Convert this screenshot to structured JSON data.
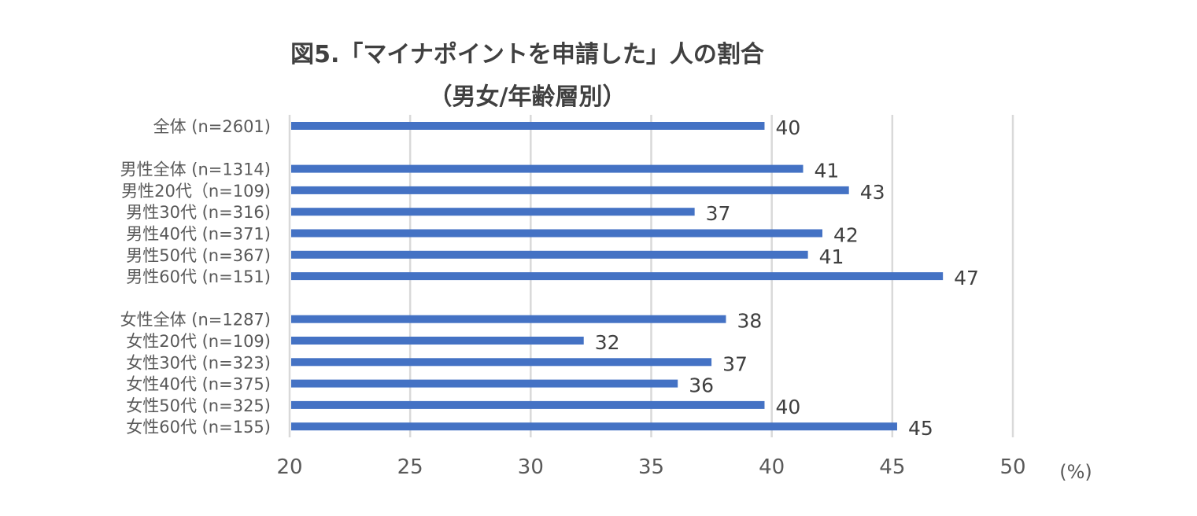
{
  "title_lines": [
    "図5.「マイナポイントを申請した」人の割合",
    "（男女/年齢層別）"
  ],
  "chart_data": {
    "type": "bar",
    "orientation": "horizontal",
    "title": "図5.「マイナポイントを申請した」人の割合（男女/年齢層別）",
    "xlabel": "(%)",
    "ylabel": "",
    "xlim": [
      20,
      50
    ],
    "x_ticks": [
      "20",
      "25",
      "30",
      "35",
      "40",
      "45",
      "50"
    ],
    "grid": "vertical",
    "categories": [
      "全体 (n=2601)",
      "男性全体 (n=1314)",
      "男性20代（n=109)",
      "男性30代 (n=316)",
      "男性40代 (n=371)",
      "男性50代 (n=367)",
      "男性60代 (n=151)",
      "女性全体 (n=1287)",
      "女性20代 (n=109)",
      "女性30代 (n=323)",
      "女性40代 (n=375)",
      "女性50代 (n=325)",
      "女性60代 (n=155)"
    ],
    "groups": [
      0,
      1,
      1,
      1,
      1,
      1,
      1,
      2,
      2,
      2,
      2,
      2,
      2
    ],
    "values": [
      39.7,
      41.3,
      43.2,
      36.8,
      42.1,
      41.5,
      47.1,
      38.1,
      32.2,
      37.5,
      36.1,
      39.7,
      45.2
    ],
    "data_labels": [
      "40",
      "41",
      "43",
      "37",
      "42",
      "41",
      "47",
      "38",
      "32",
      "37",
      "36",
      "40",
      "45"
    ],
    "colors": {
      "bar": "#4472c4",
      "grid": "#d9d9d9",
      "text": "#595959",
      "label": "#404040"
    }
  }
}
